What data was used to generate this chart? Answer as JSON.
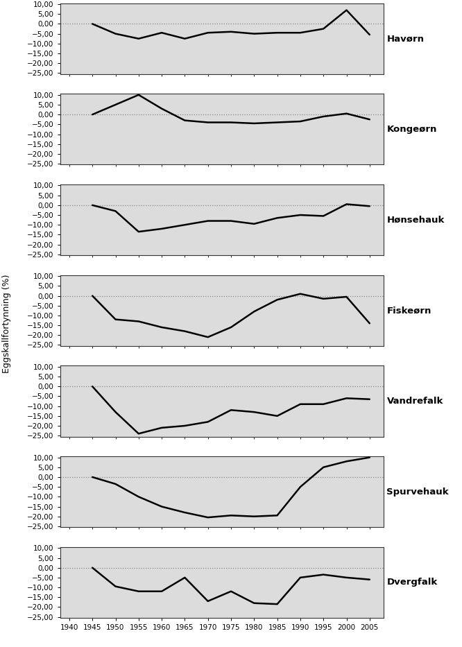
{
  "species": [
    "Havørn",
    "Kongeørn",
    "Hønsehauk",
    "Fiskeørn",
    "Vandrefalk",
    "Spurvehauk",
    "Dvergfalk"
  ],
  "series": {
    "Havørn": {
      "x": [
        1945,
        1950,
        1955,
        1960,
        1965,
        1970,
        1975,
        1980,
        1985,
        1990,
        1995,
        2000,
        2005
      ],
      "y": [
        0.0,
        -5.0,
        -7.5,
        -4.5,
        -7.5,
        -4.5,
        -4.0,
        -5.0,
        -4.5,
        -4.5,
        -2.5,
        7.0,
        -5.5
      ]
    },
    "Kongeørn": {
      "x": [
        1945,
        1950,
        1955,
        1960,
        1965,
        1970,
        1975,
        1980,
        1985,
        1990,
        1995,
        2000,
        2005
      ],
      "y": [
        0.0,
        5.0,
        10.0,
        3.0,
        -3.0,
        -4.0,
        -4.0,
        -4.5,
        -4.0,
        -3.5,
        -1.0,
        0.5,
        -2.5
      ]
    },
    "Hønsehauk": {
      "x": [
        1945,
        1950,
        1955,
        1960,
        1965,
        1970,
        1975,
        1980,
        1985,
        1990,
        1995,
        2000,
        2005
      ],
      "y": [
        0.0,
        -3.0,
        -13.5,
        -12.0,
        -10.0,
        -8.0,
        -8.0,
        -9.5,
        -6.5,
        -5.0,
        -5.5,
        0.5,
        -0.5
      ]
    },
    "Fiskeørn": {
      "x": [
        1945,
        1950,
        1955,
        1960,
        1965,
        1970,
        1975,
        1980,
        1985,
        1990,
        1995,
        2000,
        2005
      ],
      "y": [
        0.0,
        -12.0,
        -13.0,
        -16.0,
        -18.0,
        -21.0,
        -16.0,
        -8.0,
        -2.0,
        1.0,
        -1.5,
        -0.5,
        -14.0
      ]
    },
    "Vandrefalk": {
      "x": [
        1945,
        1950,
        1955,
        1960,
        1965,
        1970,
        1975,
        1980,
        1985,
        1990,
        1995,
        2000,
        2005
      ],
      "y": [
        0.0,
        -13.0,
        -24.0,
        -21.0,
        -20.0,
        -18.0,
        -12.0,
        -13.0,
        -15.0,
        -9.0,
        -9.0,
        -6.0,
        -6.5
      ]
    },
    "Spurvehauk": {
      "x": [
        1945,
        1950,
        1955,
        1960,
        1965,
        1970,
        1975,
        1980,
        1985,
        1990,
        1995,
        2000,
        2005
      ],
      "y": [
        0.0,
        -3.5,
        -10.0,
        -15.0,
        -18.0,
        -20.5,
        -19.5,
        -20.0,
        -19.5,
        -5.0,
        5.0,
        8.0,
        10.0
      ]
    },
    "Dvergfalk": {
      "x": [
        1945,
        1950,
        1955,
        1960,
        1965,
        1970,
        1975,
        1980,
        1985,
        1990,
        1995,
        2000,
        2005
      ],
      "y": [
        0.0,
        -9.5,
        -12.0,
        -12.0,
        -5.0,
        -17.0,
        -12.0,
        -18.0,
        -18.5,
        -5.0,
        -3.5,
        -5.0,
        -6.0
      ]
    }
  },
  "ylim": [
    -25,
    10
  ],
  "yticks": [
    10,
    5,
    0,
    -5,
    -10,
    -15,
    -20,
    -25
  ],
  "xticks": [
    1940,
    1945,
    1950,
    1955,
    1960,
    1965,
    1970,
    1975,
    1980,
    1985,
    1990,
    1995,
    2000,
    2005
  ],
  "ylabel": "Eggskallfortynning (%)",
  "background_color": "#dcdcdc",
  "line_color": "#000000",
  "label_color": "#000000",
  "dashed_line_color": "#888888",
  "label_fontsize": 9.5,
  "tick_fontsize": 7.5
}
